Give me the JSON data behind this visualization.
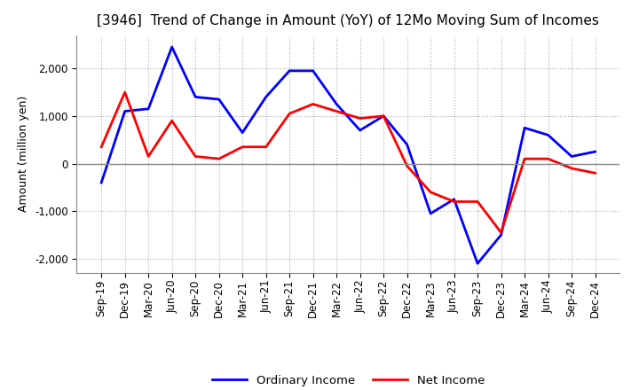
{
  "title": "[3946]  Trend of Change in Amount (YoY) of 12Mo Moving Sum of Incomes",
  "ylabel": "Amount (million yen)",
  "ylim": [
    -2300,
    2700
  ],
  "yticks": [
    -2000,
    -1000,
    0,
    1000,
    2000
  ],
  "background_color": "#ffffff",
  "grid_color": "#aaaaaa",
  "x_labels": [
    "Sep-19",
    "Dec-19",
    "Mar-20",
    "Jun-20",
    "Sep-20",
    "Dec-20",
    "Mar-21",
    "Jun-21",
    "Sep-21",
    "Dec-21",
    "Mar-22",
    "Jun-22",
    "Sep-22",
    "Dec-22",
    "Mar-23",
    "Jun-23",
    "Sep-23",
    "Dec-23",
    "Mar-24",
    "Jun-24",
    "Sep-24",
    "Dec-24"
  ],
  "ordinary_income": [
    -400,
    1100,
    1150,
    2450,
    1400,
    1350,
    650,
    1400,
    1950,
    1950,
    1250,
    700,
    1000,
    400,
    -1050,
    -750,
    -2100,
    -1500,
    750,
    600,
    150,
    250
  ],
  "net_income": [
    350,
    1500,
    150,
    900,
    150,
    100,
    350,
    350,
    1050,
    1250,
    1100,
    950,
    1000,
    -50,
    -600,
    -800,
    -800,
    -1450,
    100,
    100,
    -100,
    -200
  ],
  "ordinary_color": "#0000ff",
  "net_color": "#ff0000",
  "legend_labels": [
    "Ordinary Income",
    "Net Income"
  ],
  "title_fontsize": 11,
  "ylabel_fontsize": 9,
  "tick_fontsize": 8.5
}
